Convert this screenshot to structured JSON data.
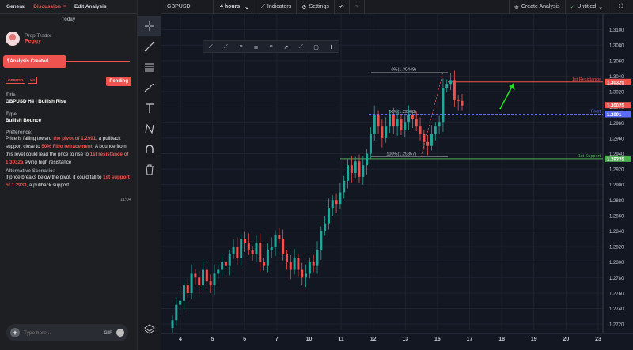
{
  "tabs": [
    {
      "label": "General"
    },
    {
      "label": "Discussion"
    },
    {
      "label": "Edit Analysis"
    }
  ],
  "tab_close": "×",
  "day_label": "Today",
  "trader": {
    "role": "Prop Trader",
    "name": "Peggy"
  },
  "analysis_created": "¶Analysis Created",
  "tags": [
    "GBPUSD",
    "H4"
  ],
  "status": "Pending",
  "title_label": "Title",
  "title_value": "GBPUSD H4 | Bullish Rise",
  "type_label": "Type",
  "type_value": "Bullish Bounce",
  "preference_label": "Preference:",
  "preference": {
    "p1": "Price is falling toward ",
    "h1": "the pivot of 1.2991",
    "p2": ", a pullback support close to ",
    "h2": "50% Fibo retracement",
    "p3": ". A bounce from this level could lead the price to rise to ",
    "h3": "1st resistance of 1.3032a",
    "p4": " swing high resistance"
  },
  "alt_label": "Alternative Scenario:",
  "alternative": {
    "p1": "If price breaks below the pivot, it could fall to ",
    "h1": "1st support of 1.2933",
    "p2": ", a pullback support"
  },
  "message_time": "11:04",
  "composer": {
    "placeholder": "Type here...",
    "gif": "GIF"
  },
  "topbar": {
    "symbol": "GBPUSD",
    "interval": "4 hours",
    "indicators": "Indicators",
    "settings": "Settings",
    "create": "Create Analysis",
    "layout": "Untitled"
  },
  "colors": {
    "accent": "#ef5350",
    "up": "#26a69a",
    "down": "#ef5350",
    "pivot": "#5b6cf7",
    "support": "#4caf50",
    "resistance": "#ef5350",
    "arrow": "#22e022"
  },
  "chart_data": {
    "type": "candlestick",
    "symbol": "GBPUSD",
    "interval": "4 hours",
    "ylim": [
      1.2712,
      1.312
    ],
    "y_ticks": [
      "1.3100",
      "1.3080",
      "1.3060",
      "1.3040",
      "1.3020",
      "1.3000",
      "1.2980",
      "1.2960",
      "1.2940",
      "1.2920",
      "1.2900",
      "1.2880",
      "1.2860",
      "1.2840",
      "1.2820",
      "1.2800",
      "1.2780",
      "1.2760",
      "1.2740",
      "1.2720"
    ],
    "x_ticks": [
      "4",
      "5",
      "6",
      "7",
      "10",
      "11",
      "12",
      "13",
      "16",
      "17",
      "18",
      "19",
      "20",
      "23"
    ],
    "levels": [
      {
        "label": "1st Resistance",
        "value": 1.30325,
        "price_label": "1.30325"
      },
      {
        "label": "Pivot",
        "value": 1.2991,
        "price_label": "1.2991"
      },
      {
        "label": "1st Support",
        "value": 1.29335,
        "price_label": "1.29335"
      }
    ],
    "fib": [
      {
        "label": "0%(1.30449)",
        "value": 1.30449
      },
      {
        "label": "50%(1.29903)",
        "value": 1.29903
      },
      {
        "label": "100%(1.29357)",
        "value": 1.29357
      }
    ],
    "last_price": "1.30025",
    "closes": [
      1.2725,
      1.2745,
      1.275,
      1.277,
      1.276,
      1.2785,
      1.278,
      1.277,
      1.279,
      1.2775,
      1.277,
      1.2785,
      1.279,
      1.28,
      1.2795,
      1.281,
      1.282,
      1.2805,
      1.283,
      1.2825,
      1.2815,
      1.281,
      1.2825,
      1.28,
      1.2795,
      1.2815,
      1.282,
      1.2835,
      1.283,
      1.281,
      1.28,
      1.279,
      1.2805,
      1.279,
      1.278,
      1.2785,
      1.28,
      1.2795,
      1.2815,
      1.284,
      1.285,
      1.287,
      1.288,
      1.2875,
      1.289,
      1.2905,
      1.2925,
      1.2915,
      1.293,
      1.291,
      1.2925,
      1.294,
      1.2965,
      1.299,
      1.2975,
      1.296,
      1.2975,
      1.299,
      1.2975,
      1.2985,
      1.297,
      1.298,
      1.299,
      1.2985,
      1.2975,
      1.2965,
      1.2955,
      1.295,
      1.2965,
      1.2975,
      1.298,
      1.3025,
      1.303,
      1.3035,
      1.301,
      1.3008,
      1.3002
    ]
  }
}
